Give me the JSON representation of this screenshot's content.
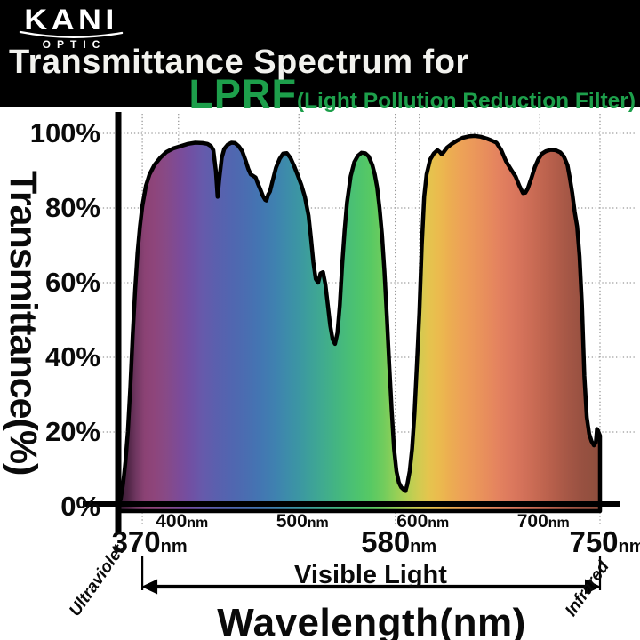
{
  "header": {
    "logo": {
      "brand": "KANI",
      "sub": "OPTIC"
    },
    "title": "Transmittance Spectrum for",
    "product": "LPRF",
    "product_suffix": "(Light Pollution Reduction Filter)",
    "accent_green": "#1d9f4b",
    "background": "#000000"
  },
  "chart_data": {
    "type": "area",
    "title": "Transmittance Spectrum for LPRF (Light Pollution Reduction Filter)",
    "xlabel": "Wavelength(nm)",
    "ylabel": "Transmittance(%)",
    "unit": "nm",
    "xlim": [
      350,
      750
    ],
    "ylim": [
      0,
      100
    ],
    "grid": true,
    "y_ticks": [
      {
        "pct": 100,
        "label": "100%"
      },
      {
        "pct": 80,
        "label": "80%"
      },
      {
        "pct": 60,
        "label": "60%"
      },
      {
        "pct": 40,
        "label": "40%"
      },
      {
        "pct": 20,
        "label": "20%"
      },
      {
        "pct": 0,
        "label": "0%"
      }
    ],
    "x_major_ticks": [
      {
        "nm": 370,
        "num": "370",
        "dx": 8
      },
      {
        "nm": 580,
        "num": "580",
        "dx": 4
      },
      {
        "nm": 750,
        "num": "750",
        "dx": 8
      }
    ],
    "x_minor_ticks": [
      {
        "nm": 400,
        "num": "400"
      },
      {
        "nm": 500,
        "num": "500"
      },
      {
        "nm": 600,
        "num": "600"
      },
      {
        "nm": 700,
        "num": "700"
      }
    ],
    "grid_nm": [
      370,
      400,
      500,
      580,
      600,
      700,
      750
    ],
    "grid_pct": [
      100,
      80,
      60,
      40,
      20
    ],
    "annotations": {
      "left": "Ultraviolet",
      "center": "Visible Light",
      "right": "Infrared",
      "arrow_range_nm": [
        370,
        750
      ]
    },
    "curve": [
      [
        350,
        0
      ],
      [
        352,
        2
      ],
      [
        354,
        6
      ],
      [
        356,
        12
      ],
      [
        358,
        20
      ],
      [
        360,
        32
      ],
      [
        362,
        46
      ],
      [
        364,
        58
      ],
      [
        366,
        68
      ],
      [
        368,
        75
      ],
      [
        370,
        80.5
      ],
      [
        373,
        86
      ],
      [
        376,
        89
      ],
      [
        380,
        91.5
      ],
      [
        385,
        93.5
      ],
      [
        390,
        95
      ],
      [
        396,
        96
      ],
      [
        402,
        96.6
      ],
      [
        408,
        97.2
      ],
      [
        414,
        97.5
      ],
      [
        420,
        97.4
      ],
      [
        424,
        97.2
      ],
      [
        427,
        96.6
      ],
      [
        429,
        95.5
      ],
      [
        431,
        90
      ],
      [
        432.5,
        83
      ],
      [
        434,
        88
      ],
      [
        436,
        93.5
      ],
      [
        438,
        95.8
      ],
      [
        441,
        97
      ],
      [
        444,
        97.5
      ],
      [
        447,
        97.4
      ],
      [
        450,
        96.6
      ],
      [
        453,
        95.2
      ],
      [
        456,
        92.5
      ],
      [
        458,
        90.5
      ],
      [
        460,
        89
      ],
      [
        462,
        88.6
      ],
      [
        464,
        88.2
      ],
      [
        466,
        86.5
      ],
      [
        468,
        85
      ],
      [
        470,
        83.3
      ],
      [
        472,
        82.2
      ],
      [
        473,
        82
      ],
      [
        474.5,
        83.6
      ],
      [
        476,
        84.4
      ],
      [
        478,
        87
      ],
      [
        481,
        90.8
      ],
      [
        484,
        93.2
      ],
      [
        487,
        94.6
      ],
      [
        490,
        94.7
      ],
      [
        493,
        93.4
      ],
      [
        496,
        91.3
      ],
      [
        499,
        88.8
      ],
      [
        502,
        86.2
      ],
      [
        505,
        83
      ],
      [
        508,
        78
      ],
      [
        510,
        72
      ],
      [
        512,
        65.5
      ],
      [
        514,
        61
      ],
      [
        516,
        60
      ],
      [
        518,
        62.5
      ],
      [
        520,
        62.8
      ],
      [
        522,
        59.5
      ],
      [
        524,
        54
      ],
      [
        526,
        48.5
      ],
      [
        528,
        44.8
      ],
      [
        530,
        43.6
      ],
      [
        532,
        46.5
      ],
      [
        534,
        54
      ],
      [
        536,
        65
      ],
      [
        538,
        74
      ],
      [
        540,
        81.5
      ],
      [
        543,
        88.5
      ],
      [
        546,
        92.3
      ],
      [
        549,
        94
      ],
      [
        552,
        94.8
      ],
      [
        555,
        94.7
      ],
      [
        558,
        93.8
      ],
      [
        561,
        91.5
      ],
      [
        563,
        89
      ],
      [
        565,
        85.5
      ],
      [
        567,
        80
      ],
      [
        569,
        73
      ],
      [
        571,
        63
      ],
      [
        573,
        51
      ],
      [
        575,
        38
      ],
      [
        577,
        26
      ],
      [
        579,
        15.5
      ],
      [
        581,
        9.5
      ],
      [
        583,
        6.5
      ],
      [
        585,
        5.2
      ],
      [
        587,
        4.6
      ],
      [
        588.5,
        4.2
      ],
      [
        590,
        6
      ],
      [
        592,
        9.5
      ],
      [
        594,
        15.5
      ],
      [
        596,
        25
      ],
      [
        598,
        38
      ],
      [
        600,
        52
      ],
      [
        602,
        70
      ],
      [
        604,
        83
      ],
      [
        606,
        89
      ],
      [
        609,
        93
      ],
      [
        612,
        94.6
      ],
      [
        615,
        95.5
      ],
      [
        617,
        95
      ],
      [
        618.5,
        94.4
      ],
      [
        620,
        94.9
      ],
      [
        623,
        96.2
      ],
      [
        627,
        97.2
      ],
      [
        631,
        98
      ],
      [
        636,
        98.8
      ],
      [
        641,
        99.2
      ],
      [
        646,
        99.3
      ],
      [
        651,
        99.1
      ],
      [
        656,
        98.6
      ],
      [
        660,
        98.1
      ],
      [
        664,
        97.5
      ],
      [
        668,
        95.5
      ],
      [
        672,
        92.5
      ],
      [
        676,
        90.4
      ],
      [
        680,
        88.4
      ],
      [
        683,
        86
      ],
      [
        686,
        84
      ],
      [
        688,
        84.1
      ],
      [
        690,
        85.2
      ],
      [
        693,
        88
      ],
      [
        696,
        91
      ],
      [
        699,
        93.2
      ],
      [
        702,
        94.6
      ],
      [
        705,
        95.2
      ],
      [
        709,
        95.6
      ],
      [
        713,
        95.5
      ],
      [
        717,
        94.9
      ],
      [
        720,
        93.8
      ],
      [
        723,
        91.5
      ],
      [
        725,
        88
      ],
      [
        727,
        84
      ],
      [
        729,
        79
      ],
      [
        731,
        75
      ],
      [
        733,
        67
      ],
      [
        735,
        54
      ],
      [
        737,
        35
      ],
      [
        739,
        24
      ],
      [
        741,
        19.5
      ],
      [
        743,
        17.5
      ],
      [
        745,
        16.4
      ],
      [
        746.5,
        17.2
      ],
      [
        747.5,
        20.8
      ],
      [
        748.5,
        20.2
      ],
      [
        750,
        19
      ]
    ],
    "spectrum_stops": [
      [
        350,
        "#2e182c"
      ],
      [
        358,
        "#4f2545"
      ],
      [
        365,
        "#713862"
      ],
      [
        372,
        "#8b4274"
      ],
      [
        380,
        "#8e457b"
      ],
      [
        390,
        "#874a87"
      ],
      [
        400,
        "#7d4b97"
      ],
      [
        410,
        "#7150a3"
      ],
      [
        420,
        "#665aab"
      ],
      [
        432,
        "#5a60ae"
      ],
      [
        444,
        "#5166b0"
      ],
      [
        456,
        "#4a6db1"
      ],
      [
        468,
        "#4376b2"
      ],
      [
        480,
        "#3f81b0"
      ],
      [
        490,
        "#3d8caa"
      ],
      [
        500,
        "#3c96a3"
      ],
      [
        510,
        "#3da199"
      ],
      [
        520,
        "#40ab8f"
      ],
      [
        530,
        "#43b483"
      ],
      [
        540,
        "#48bd78"
      ],
      [
        550,
        "#4ec46d"
      ],
      [
        560,
        "#58c963"
      ],
      [
        570,
        "#70cc5d"
      ],
      [
        580,
        "#92cf57"
      ],
      [
        590,
        "#b3d053"
      ],
      [
        600,
        "#d2cb50"
      ],
      [
        608,
        "#e5c44e"
      ],
      [
        616,
        "#ebbb4e"
      ],
      [
        625,
        "#ecae51"
      ],
      [
        635,
        "#eda257"
      ],
      [
        645,
        "#eb985a"
      ],
      [
        655,
        "#e88e5c"
      ],
      [
        665,
        "#e4835f"
      ],
      [
        675,
        "#dd7a5e"
      ],
      [
        685,
        "#d4725a"
      ],
      [
        695,
        "#c96b54"
      ],
      [
        705,
        "#bd634e"
      ],
      [
        715,
        "#b05c49"
      ],
      [
        725,
        "#a35645"
      ],
      [
        735,
        "#985141"
      ],
      [
        742,
        "#93503f"
      ],
      [
        750,
        "#8d4d3c"
      ]
    ],
    "grid_color": "#999999",
    "axis_color": "#000000"
  }
}
